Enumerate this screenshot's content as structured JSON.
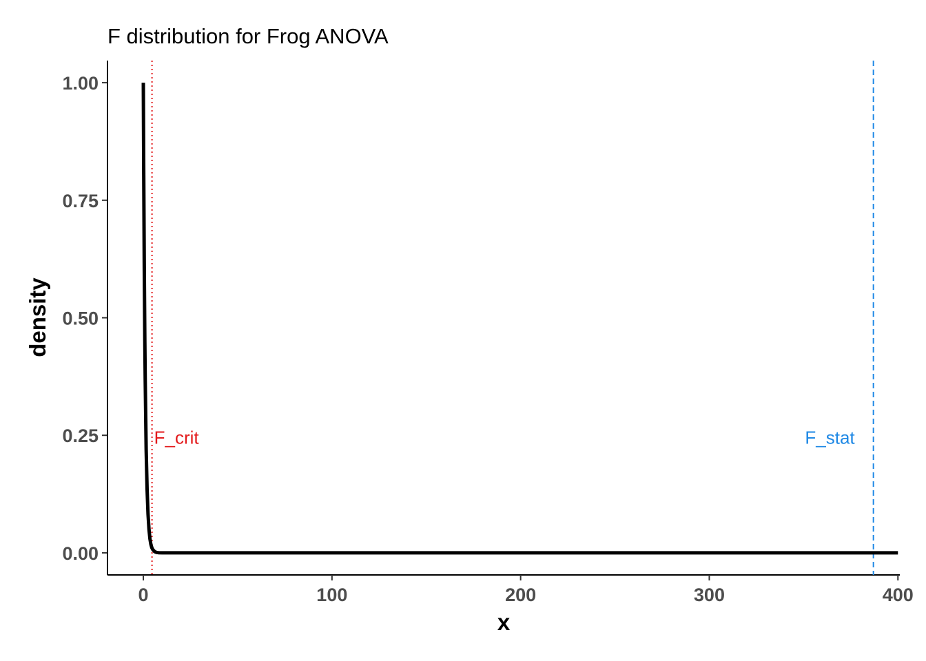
{
  "chart_data": {
    "type": "line",
    "title": "F distribution for Frog ANOVA",
    "xlabel": "x",
    "ylabel": "density",
    "xlim": [
      -19,
      401
    ],
    "ylim": [
      -0.047,
      1.047
    ],
    "x_ticks": [
      0,
      100,
      200,
      300,
      400
    ],
    "x_tick_labels": [
      "0",
      "100",
      "200",
      "300",
      "400"
    ],
    "y_ticks": [
      0,
      0.25,
      0.5,
      0.75,
      1
    ],
    "y_tick_labels": [
      "0.00",
      "0.25",
      "0.50",
      "0.75",
      "1.00"
    ],
    "grid": false,
    "series": [
      {
        "color": "#000000",
        "x": [
          0,
          0.2,
          0.5,
          0.8,
          1,
          1.5,
          2,
          2.5,
          3,
          3.5,
          4,
          4.5,
          5,
          6,
          7,
          8,
          10,
          15,
          20,
          50,
          100,
          200,
          300,
          400
        ],
        "y": [
          1.0,
          0.82,
          0.61,
          0.45,
          0.37,
          0.22,
          0.135,
          0.082,
          0.05,
          0.03,
          0.018,
          0.011,
          0.007,
          0.0025,
          0.0009,
          0.0003,
          0.0001,
          0,
          0,
          0,
          0,
          0,
          0,
          0
        ]
      }
    ],
    "vlines": [
      {
        "x": 4.6,
        "color": "#e31a1c",
        "style": "dotted",
        "label": "F_crit",
        "label_y": 0.245,
        "label_anchor": "start"
      },
      {
        "x": 387,
        "color": "#1e88e5",
        "style": "dashed",
        "label": "F_stat",
        "label_y": 0.245,
        "label_anchor": "end"
      }
    ]
  }
}
